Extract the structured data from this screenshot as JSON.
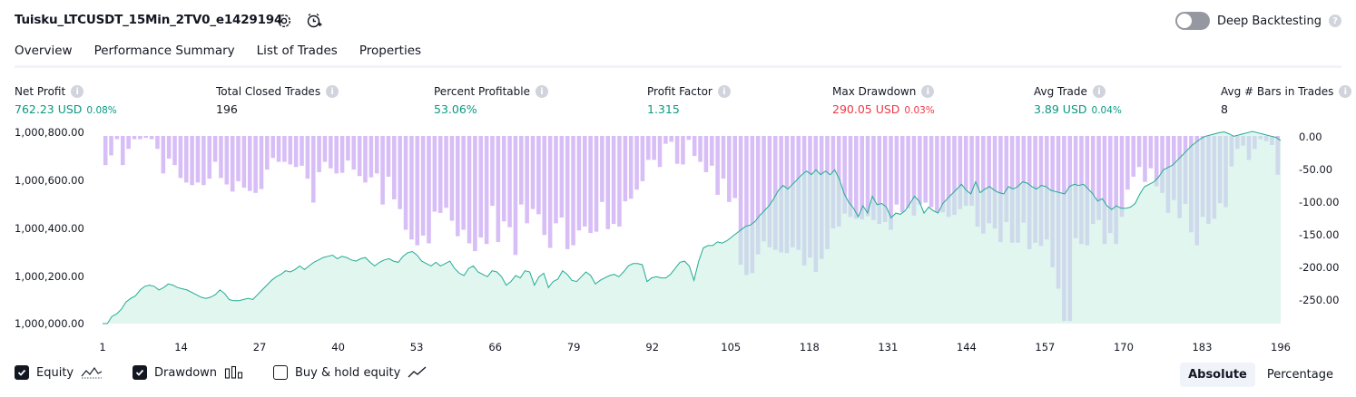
{
  "header": {
    "title": "Tuisku_LTCUSDT_15Min_2TV0_e1429194",
    "settings_icon": "gear-icon",
    "add_alert_icon": "alarm-plus-icon",
    "deep_backtesting_label": "Deep Backtesting",
    "deep_backtesting_on": false,
    "help_icon": "question-icon"
  },
  "tabs": [
    {
      "label": "Overview",
      "active": true
    },
    {
      "label": "Performance Summary",
      "active": false
    },
    {
      "label": "List of Trades",
      "active": false
    },
    {
      "label": "Properties",
      "active": false
    }
  ],
  "metrics": {
    "net_profit": {
      "label": "Net Profit",
      "value": "762.23 USD",
      "pct": "0.08%"
    },
    "total_closed_trades": {
      "label": "Total Closed Trades",
      "value": "196"
    },
    "percent_profitable": {
      "label": "Percent Profitable",
      "value": "53.06%"
    },
    "profit_factor": {
      "label": "Profit Factor",
      "value": "1.315"
    },
    "max_drawdown": {
      "label": "Max Drawdown",
      "value": "290.05 USD",
      "pct": "0.03%"
    },
    "avg_trade": {
      "label": "Avg Trade",
      "value": "3.89 USD",
      "pct": "0.04%"
    },
    "avg_bars": {
      "label": "Avg # Bars in Trades",
      "value": "8"
    }
  },
  "colors": {
    "positive": "#089981",
    "negative": "#f23645",
    "equity_line": "#22ab94",
    "equity_fill": "#c6eee2",
    "drawdown_bar": "#d1b3f5",
    "text": "#131722"
  },
  "legend": {
    "equity": {
      "label": "Equity",
      "checked": true,
      "icon": "equity-line-icon"
    },
    "drawdown": {
      "label": "Drawdown",
      "checked": true,
      "icon": "drawdown-bars-icon"
    },
    "buy_hold": {
      "label": "Buy & hold equity",
      "checked": false,
      "icon": "trend-line-icon"
    }
  },
  "view_toggle": {
    "absolute": "Absolute",
    "percentage": "Percentage",
    "selected": "Absolute"
  },
  "chart_data": {
    "type": "area",
    "left_axis": {
      "ticks": [
        "1,000,800.00",
        "1,000,600.00",
        "1,000,400.00",
        "1,000,200.00",
        "1,000,000.00"
      ],
      "range": [
        1000000,
        1000800
      ]
    },
    "right_axis": {
      "ticks": [
        "0.00",
        "-50.00",
        "-100.00",
        "-150.00",
        "-200.00",
        "-250.00"
      ],
      "range": [
        -290,
        0
      ]
    },
    "x_ticks": [
      "1",
      "14",
      "27",
      "40",
      "53",
      "66",
      "79",
      "92",
      "105",
      "118",
      "131",
      "144",
      "157",
      "170",
      "183",
      "196"
    ],
    "x_range": [
      1,
      196
    ],
    "series": [
      {
        "type": "line",
        "axis": "left",
        "values": [
          1000000,
          1000000,
          1000030,
          1000040,
          1000060,
          1000090,
          1000105,
          1000115,
          1000140,
          1000155,
          1000160,
          1000155,
          1000140,
          1000150,
          1000165,
          1000160,
          1000150,
          1000145,
          1000140,
          1000130,
          1000120,
          1000110,
          1000105,
          1000110,
          1000120,
          1000140,
          1000125,
          1000100,
          1000095,
          1000095,
          1000100,
          1000105,
          1000100,
          1000120,
          1000140,
          1000160,
          1000180,
          1000195,
          1000205,
          1000220,
          1000215,
          1000225,
          1000240,
          1000225,
          1000240,
          1000255,
          1000265,
          1000275,
          1000280,
          1000285,
          1000270,
          1000280,
          1000275,
          1000265,
          1000260,
          1000270,
          1000275,
          1000255,
          1000240,
          1000255,
          1000265,
          1000270,
          1000260,
          1000255,
          1000280,
          1000295,
          1000300,
          1000285,
          1000260,
          1000250,
          1000240,
          1000255,
          1000240,
          1000250,
          1000260,
          1000230,
          1000210,
          1000200,
          1000230,
          1000240,
          1000215,
          1000205,
          1000195,
          1000220,
          1000215,
          1000195,
          1000160,
          1000175,
          1000200,
          1000190,
          1000220,
          1000215,
          1000160,
          1000195,
          1000210,
          1000150,
          1000175,
          1000185,
          1000220,
          1000205,
          1000180,
          1000175,
          1000195,
          1000215,
          1000200,
          1000165,
          1000180,
          1000190,
          1000200,
          1000205,
          1000195,
          1000215,
          1000240,
          1000250,
          1000250,
          1000245,
          1000175,
          1000190,
          1000195,
          1000190,
          1000190,
          1000205,
          1000230,
          1000255,
          1000260,
          1000240,
          1000180,
          1000260,
          1000315,
          1000325,
          1000325,
          1000340,
          1000335,
          1000345,
          1000360,
          1000375,
          1000390,
          1000405,
          1000410,
          1000425,
          1000450,
          1000470,
          1000490,
          1000520,
          1000555,
          1000575,
          1000560,
          1000580,
          1000600,
          1000620,
          1000635,
          1000620,
          1000640,
          1000620,
          1000635,
          1000620,
          1000640,
          1000600,
          1000540,
          1000505,
          1000480,
          1000445,
          1000490,
          1000460,
          1000530,
          1000495,
          1000500,
          1000485,
          1000440,
          1000460,
          1000455,
          1000470,
          1000500,
          1000530,
          1000510,
          1000460,
          1000485,
          1000470,
          1000460,
          1000500,
          1000520,
          1000540,
          1000560,
          1000580,
          1000555,
          1000540,
          1000590,
          1000545,
          1000560,
          1000570,
          1000555,
          1000545,
          1000540,
          1000570,
          1000560,
          1000570,
          1000590,
          1000585,
          1000570,
          1000560,
          1000575,
          1000570,
          1000555,
          1000550,
          1000545,
          1000540,
          1000570,
          1000580,
          1000575,
          1000580,
          1000560,
          1000540,
          1000510,
          1000520,
          1000490,
          1000475,
          1000490,
          1000480,
          1000480,
          1000485,
          1000500,
          1000540,
          1000570,
          1000580,
          1000590,
          1000610,
          1000640,
          1000650,
          1000660,
          1000680,
          1000700,
          1000720,
          1000740,
          1000755,
          1000770,
          1000780,
          1000785,
          1000790,
          1000795,
          1000798,
          1000790,
          1000780,
          1000785,
          1000790,
          1000795,
          1000800,
          1000795,
          1000790,
          1000785,
          1000780,
          1000775,
          1000762
        ]
      },
      {
        "type": "bar",
        "axis": "right",
        "values": [
          -45,
          -30,
          -5,
          -45,
          -20,
          -5,
          -5,
          -3,
          -5,
          -20,
          -58,
          -35,
          -45,
          -65,
          -72,
          -76,
          -72,
          -76,
          -66,
          -40,
          -65,
          -75,
          -86,
          -70,
          -80,
          -85,
          -88,
          -82,
          -52,
          -34,
          -40,
          -40,
          -44,
          -48,
          -46,
          -66,
          -103,
          -56,
          -40,
          -50,
          -58,
          -57,
          -38,
          -52,
          -62,
          -72,
          -64,
          -58,
          -106,
          -63,
          -98,
          -113,
          -145,
          -160,
          -169,
          -154,
          -166,
          -117,
          -119,
          -111,
          -131,
          -155,
          -145,
          -166,
          -178,
          -157,
          -167,
          -108,
          -164,
          -132,
          -141,
          -184,
          -106,
          -135,
          -113,
          -121,
          -153,
          -173,
          -135,
          -126,
          -175,
          -169,
          -146,
          -140,
          -150,
          -148,
          -102,
          -144,
          -136,
          -140,
          -101,
          -97,
          -83,
          -70,
          -37,
          -37,
          -48,
          -12,
          -9,
          -43,
          -44,
          -6,
          -31,
          -40,
          -56,
          -46,
          -91,
          -66,
          -102,
          -96,
          -199,
          -215,
          -212,
          -183,
          -163,
          -172,
          -176,
          -180,
          -181,
          -172,
          -176,
          -200,
          -188,
          -210,
          -190,
          -175,
          -143,
          -140,
          -120,
          -125,
          -128,
          -129,
          -124,
          -130,
          -136,
          -133,
          -145,
          -106,
          -118,
          -112,
          -123,
          -106,
          -103,
          -110,
          -118,
          -118,
          -125,
          -122,
          -113,
          -108,
          -108,
          -140,
          -151,
          -135,
          -143,
          -164,
          -133,
          -165,
          -165,
          -134,
          -175,
          -165,
          -170,
          -160,
          -203,
          -236,
          -286,
          -286,
          -158,
          -167,
          -169,
          -136,
          -130,
          -167,
          -150,
          -167,
          -125,
          -83,
          -63,
          -48,
          -71,
          -50,
          -78,
          -88,
          -119,
          -99,
          -127,
          -105,
          -149,
          -169,
          -125,
          -136,
          -128,
          -104,
          -110,
          -47,
          -20,
          -15,
          -37,
          -20,
          -5,
          -8,
          -14,
          -60
        ]
      }
    ]
  }
}
